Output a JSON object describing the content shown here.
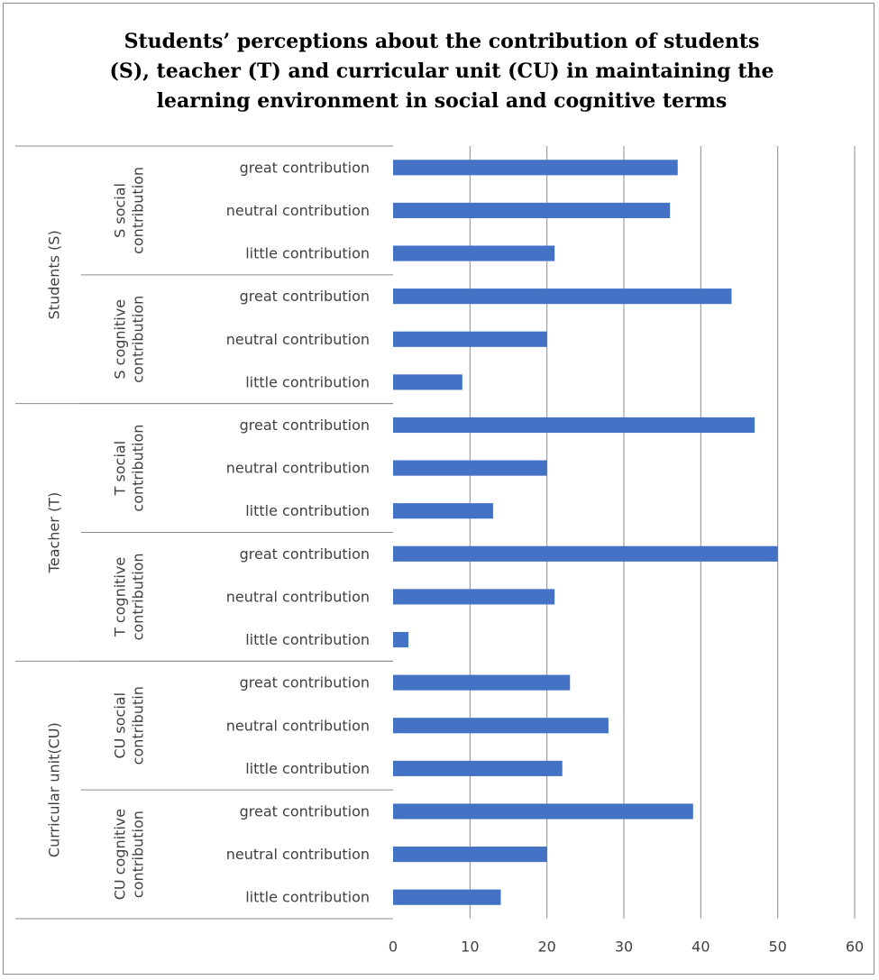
{
  "chart_data": {
    "type": "bar",
    "orientation": "horizontal",
    "title_lines": [
      "Students’ perceptions about the contribution of students",
      "(S), teacher (T) and curricular unit (CU) in maintaining the",
      "learning environment in social and cognitive terms"
    ],
    "xlabel": "",
    "ylabel": "",
    "xlim": [
      0,
      60
    ],
    "ticks": [
      0,
      10,
      20,
      30,
      40,
      50,
      60
    ],
    "tick_labels": [
      "0",
      "10",
      "20",
      "30",
      "40",
      "50",
      "60"
    ],
    "grid": "vertical",
    "legend": "none",
    "bar_color": "#4472c4",
    "groups": [
      {
        "label": "Students (S)",
        "subgroups": [
          {
            "label_lines": [
              "S social",
              "contribution"
            ],
            "items": [
              {
                "label": "great contribution",
                "value": 37
              },
              {
                "label": "neutral contribution",
                "value": 36
              },
              {
                "label": "little contribution",
                "value": 21
              }
            ]
          },
          {
            "label_lines": [
              "S cognitive",
              "contribution"
            ],
            "items": [
              {
                "label": "great contribution",
                "value": 44
              },
              {
                "label": "neutral contribution",
                "value": 20
              },
              {
                "label": "little contribution",
                "value": 9
              }
            ]
          }
        ]
      },
      {
        "label": "Teacher (T)",
        "subgroups": [
          {
            "label_lines": [
              "T social",
              "contribution"
            ],
            "items": [
              {
                "label": "great contribution",
                "value": 47
              },
              {
                "label": "neutral contribution",
                "value": 20
              },
              {
                "label": "little contribution",
                "value": 13
              }
            ]
          },
          {
            "label_lines": [
              "T cognitive",
              "contribution"
            ],
            "items": [
              {
                "label": "great contribution",
                "value": 50
              },
              {
                "label": "neutral contribution",
                "value": 21
              },
              {
                "label": "little contribution",
                "value": 2
              }
            ]
          }
        ]
      },
      {
        "label": "Curricular unit(CU)",
        "subgroups": [
          {
            "label_lines": [
              "CU social",
              "contributin"
            ],
            "items": [
              {
                "label": "great contribution",
                "value": 23
              },
              {
                "label": "neutral contribution",
                "value": 28
              },
              {
                "label": "little contribution",
                "value": 22
              }
            ]
          },
          {
            "label_lines": [
              "CU cognitive",
              "contribution"
            ],
            "items": [
              {
                "label": "great contribution",
                "value": 39
              },
              {
                "label": "neutral contribution",
                "value": 20
              },
              {
                "label": "little contribution",
                "value": 14
              }
            ]
          }
        ]
      }
    ]
  }
}
